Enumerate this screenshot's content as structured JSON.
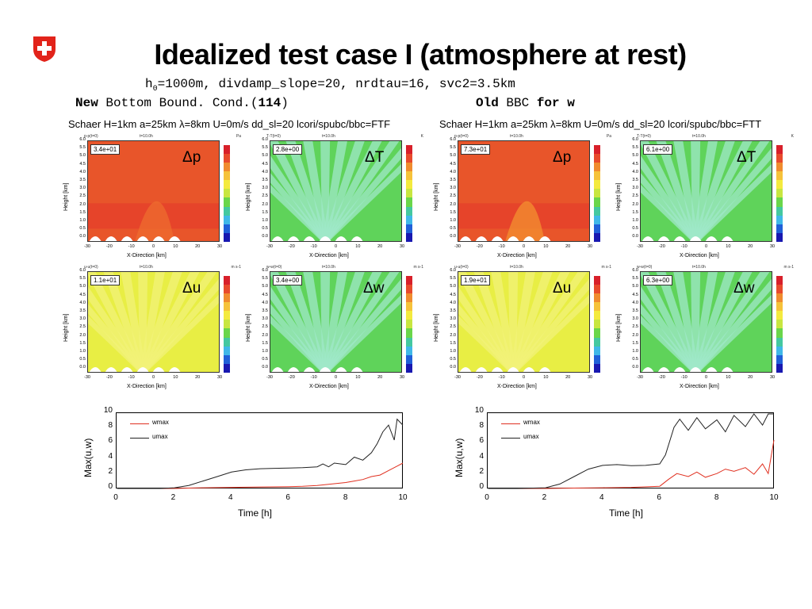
{
  "slide": {
    "title": "Idealized test case I (atmosphere at rest)",
    "params_prefix": "h",
    "params_sub": "0",
    "params_rest": "=1000m, divdamp_slope=20, nrdtau=16, svc2=3.5km",
    "left_caption_b1": "New",
    "left_caption_mid": " Bottom Bound. Cond.(",
    "left_caption_b2": "114",
    "left_caption_end": ")",
    "right_caption_b1": "Old",
    "right_caption_mid": " BBC ",
    "right_caption_b2": "for w"
  },
  "experiments": {
    "left_title": "Schaer H=1km a=25km λ=8km U=0m/s dd_sl=20 lcori/spubc/bbc=FTF",
    "right_title": "Schaer H=1km a=25km λ=8km U=0m/s dd_sl=20 lcori/spubc/bbc=FTT"
  },
  "panels": [
    {
      "id": "lp",
      "var": "p-p(t=0)",
      "time": "t=10.0h",
      "unit": "Pa",
      "max": "3.4e+01",
      "label": "Δp",
      "kind": "p"
    },
    {
      "id": "lT",
      "var": "T-T(t=0)",
      "time": "t=10.0h",
      "unit": "K",
      "max": "2.8e+00",
      "label": "ΔT",
      "kind": "T"
    },
    {
      "id": "rp",
      "var": "p-p(t=0)",
      "time": "t=10.0h",
      "unit": "Pa",
      "max": "7.3e+01",
      "label": "Δp",
      "kind": "p2"
    },
    {
      "id": "rT",
      "var": "T-T(t=0)",
      "time": "t=10.0h",
      "unit": "K",
      "max": "6.1e+00",
      "label": "ΔT",
      "kind": "T"
    },
    {
      "id": "lu",
      "var": "u-u(t=0)",
      "time": "t=10.0h",
      "unit": "m s-1",
      "max": "1.1e+01",
      "label": "Δu",
      "kind": "u"
    },
    {
      "id": "lw",
      "var": "w-w(t=0)",
      "time": "t=10.0h",
      "unit": "m s-1",
      "max": "3.4e+00",
      "label": "Δw",
      "kind": "T"
    },
    {
      "id": "ru",
      "var": "u-u(t=0)",
      "time": "t=10.0h",
      "unit": "m s-1",
      "max": "1.9e+01",
      "label": "Δu",
      "kind": "u"
    },
    {
      "id": "rw",
      "var": "w-w(t=0)",
      "time": "t=10.0h",
      "unit": "m s-1",
      "max": "6.3e+00",
      "label": "Δw",
      "kind": "T"
    }
  ],
  "panel_axes": {
    "ylabel": "Height [km]",
    "xlabel": "X-Direction [km]",
    "yticks": [
      "6.0",
      "5.5",
      "5.0",
      "4.5",
      "4.0",
      "3.5",
      "3.0",
      "2.5",
      "2.0",
      "1.5",
      "1.0",
      "0.5",
      "0.0"
    ],
    "xticks": [
      "-30",
      "-20",
      "-10",
      "0",
      "10",
      "20",
      "30"
    ]
  },
  "colors": {
    "p_fill": "#e8552a",
    "p_dark": "#d9421f",
    "T_fill": "#5fd35a",
    "T_light": "#9fe8c8",
    "u_fill": "#e8ee44",
    "u_light": "#f2f278",
    "mountain": "#ffffff",
    "colorbar": [
      "#d8202a",
      "#e84a2c",
      "#f08b2e",
      "#f6c23a",
      "#f4ea3e",
      "#c8e640",
      "#6ad64a",
      "#44c8a0",
      "#40b8e8",
      "#2060d8",
      "#1818b0"
    ],
    "wmax": "#e03020",
    "umax": "#222222"
  },
  "chart_data": [
    {
      "type": "line",
      "xlabel": "Time [h]",
      "ylabel": "Max(u,w)",
      "xlim": [
        0,
        10
      ],
      "ylim": [
        0,
        10
      ],
      "xticks": [
        "0",
        "2",
        "4",
        "6",
        "8",
        "10"
      ],
      "yticks": [
        "10",
        "8",
        "6",
        "4",
        "2",
        "0"
      ],
      "series": [
        {
          "name": "wmax",
          "x": [
            0,
            1,
            2,
            2.5,
            3,
            4,
            5,
            6,
            6.5,
            7,
            7.5,
            8,
            8.3,
            8.6,
            8.9,
            9.2,
            9.5,
            9.8,
            10
          ],
          "y": [
            0,
            0,
            0,
            0.05,
            0.1,
            0.15,
            0.2,
            0.25,
            0.3,
            0.4,
            0.6,
            0.8,
            1.0,
            1.2,
            1.6,
            1.8,
            2.4,
            3.0,
            3.4
          ]
        },
        {
          "name": "umax",
          "x": [
            0,
            1,
            1.5,
            2,
            2.5,
            3,
            3.5,
            4,
            4.5,
            5,
            5.5,
            6,
            6.5,
            7,
            7.2,
            7.4,
            7.6,
            8,
            8.3,
            8.6,
            8.9,
            9.1,
            9.3,
            9.5,
            9.7,
            9.8,
            10
          ],
          "y": [
            0,
            0,
            0,
            0.1,
            0.4,
            1.0,
            1.6,
            2.2,
            2.5,
            2.65,
            2.7,
            2.75,
            2.8,
            2.9,
            3.3,
            2.9,
            3.4,
            3.2,
            4.2,
            3.8,
            4.8,
            6.0,
            7.6,
            8.5,
            6.5,
            9.3,
            8.5
          ]
        }
      ]
    },
    {
      "type": "line",
      "xlabel": "Time [h]",
      "ylabel": "Max(u,w)",
      "xlim": [
        0,
        10
      ],
      "ylim": [
        0,
        10
      ],
      "xticks": [
        "0",
        "2",
        "4",
        "6",
        "8",
        "10"
      ],
      "yticks": [
        "10",
        "8",
        "6",
        "4",
        "2",
        "0"
      ],
      "series": [
        {
          "name": "wmax",
          "x": [
            0,
            1,
            2,
            3,
            4,
            5,
            6,
            6.3,
            6.6,
            7,
            7.3,
            7.6,
            8,
            8.3,
            8.6,
            9,
            9.3,
            9.6,
            9.8,
            10
          ],
          "y": [
            0,
            0,
            0,
            0.05,
            0.1,
            0.15,
            0.3,
            1.2,
            2.0,
            1.6,
            2.2,
            1.5,
            2.0,
            2.6,
            2.3,
            2.8,
            1.9,
            3.3,
            2.0,
            6.5
          ]
        },
        {
          "name": "umax",
          "x": [
            0,
            1,
            2,
            2.5,
            3,
            3.5,
            4,
            4.5,
            5,
            5.5,
            6,
            6.2,
            6.5,
            6.7,
            7,
            7.3,
            7.6,
            8,
            8.3,
            8.6,
            9,
            9.3,
            9.6,
            9.8,
            10
          ],
          "y": [
            0,
            0,
            0.1,
            0.6,
            1.6,
            2.6,
            3.1,
            3.2,
            3.05,
            3.1,
            3.3,
            4.5,
            8.2,
            9.3,
            7.8,
            9.5,
            8.0,
            9.2,
            7.6,
            9.8,
            8.3,
            10,
            8.5,
            10,
            10
          ]
        }
      ]
    }
  ]
}
